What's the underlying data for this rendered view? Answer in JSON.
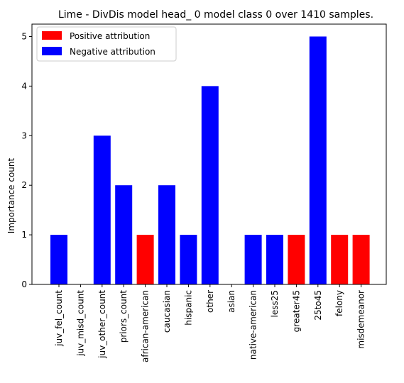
{
  "chart_data": {
    "type": "bar",
    "title": "Lime - DivDis model head_ 0 model class 0 over 1410 samples.",
    "xlabel": "",
    "ylabel": "Importance count",
    "ylim": [
      0,
      5.25
    ],
    "yticks": [
      0,
      1,
      2,
      3,
      4,
      5
    ],
    "grid": false,
    "legend_position": "top-left",
    "legend": [
      {
        "label": "Positive attribution",
        "color": "#ff0000"
      },
      {
        "label": "Negative attribution",
        "color": "#0000ff"
      }
    ],
    "categories": [
      "juv_fel_count",
      "juv_misd_count",
      "juv_other_count",
      "priors_count",
      "african-american",
      "caucasian",
      "hispanic",
      "other",
      "asian",
      "native-american",
      "less25",
      "greater45",
      "25to45",
      "felony",
      "misdemeanor"
    ],
    "values": [
      1,
      0,
      3,
      2,
      1,
      2,
      1,
      4,
      0,
      1,
      1,
      1,
      5,
      1,
      1
    ],
    "colors": [
      "#0000ff",
      "#0000ff",
      "#0000ff",
      "#0000ff",
      "#ff0000",
      "#0000ff",
      "#0000ff",
      "#0000ff",
      "#0000ff",
      "#0000ff",
      "#0000ff",
      "#ff0000",
      "#0000ff",
      "#ff0000",
      "#ff0000"
    ]
  }
}
